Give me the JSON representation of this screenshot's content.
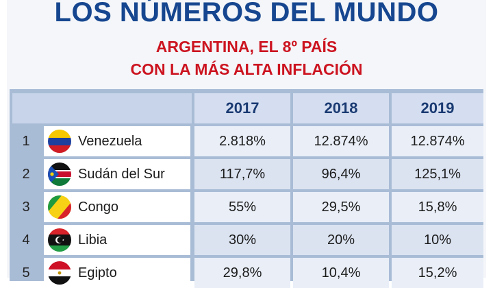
{
  "header": {
    "title": "LOS NÚMEROS DEL MUNDO",
    "subtitle_line1": "ARGENTINA, EL 8º PAÍS",
    "subtitle_line2": "CON LA MÁS ALTA INFLACIÓN"
  },
  "table": {
    "columns": [
      "2017",
      "2018",
      "2019"
    ],
    "rows": [
      {
        "rank": "1",
        "country": "Venezuela",
        "flag": "venezuela-flag-icon",
        "values": [
          "2.818%",
          "12.874%",
          "12.874%"
        ]
      },
      {
        "rank": "2",
        "country": "Sudán del Sur",
        "flag": "south-sudan-flag-icon",
        "values": [
          "117,7%",
          "96,4%",
          "125,1%"
        ]
      },
      {
        "rank": "3",
        "country": "Congo",
        "flag": "congo-flag-icon",
        "values": [
          "55%",
          "29,5%",
          "15,8%"
        ]
      },
      {
        "rank": "4",
        "country": "Libia",
        "flag": "libya-flag-icon",
        "values": [
          "30%",
          "20%",
          "10%"
        ]
      },
      {
        "rank": "5",
        "country": "Egipto",
        "flag": "egypt-flag-icon",
        "values": [
          "29,8%",
          "10,4%",
          "15,2%"
        ]
      }
    ]
  },
  "colors": {
    "title": "#16468f",
    "subtitle": "#cc1420",
    "header_cell": "#d4def0",
    "value_cell": "#e9eef7"
  }
}
